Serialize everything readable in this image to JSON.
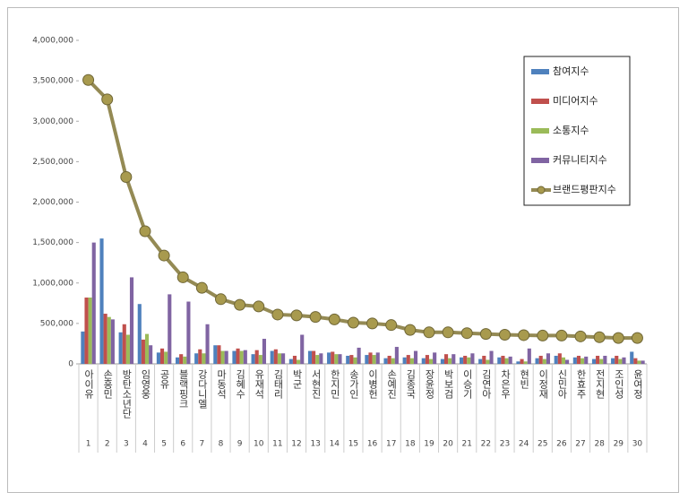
{
  "chart_data": {
    "type": "bar",
    "categories": [
      "아이유",
      "손흥민",
      "방탄소년단",
      "임영웅",
      "공유",
      "블랙핑크",
      "강다니엘",
      "마동석",
      "김혜수",
      "유재석",
      "김태리",
      "박군",
      "서현진",
      "한지민",
      "송가인",
      "이병헌",
      "손예진",
      "김종국",
      "장윤정",
      "박보검",
      "이승기",
      "김연아",
      "차은우",
      "현빈",
      "이정재",
      "신민아",
      "한효주",
      "전지현",
      "조인성",
      "윤여정"
    ],
    "ranks": [
      1,
      2,
      3,
      4,
      5,
      6,
      7,
      8,
      9,
      10,
      11,
      12,
      13,
      14,
      15,
      16,
      17,
      18,
      19,
      20,
      21,
      22,
      23,
      24,
      25,
      26,
      27,
      28,
      29,
      30
    ],
    "ylim": [
      0,
      4000000
    ],
    "yticks": [
      0,
      {
        "value": 500000,
        "label": "500,000"
      },
      {
        "value": 1000000,
        "label": "1,000,000"
      },
      {
        "value": 1500000,
        "label": "1,500,000"
      },
      {
        "value": 2000000,
        "label": "2,000,000"
      },
      {
        "value": 2500000,
        "label": "2,500,000"
      },
      {
        "value": 3000000,
        "label": "3,000,000"
      },
      {
        "value": 3500000,
        "label": "3,500,000"
      },
      {
        "value": 4000000,
        "label": "4,000,000"
      }
    ],
    "legend": "upper-right",
    "series": [
      {
        "name": "참여지수",
        "type": "bar",
        "color": "#4f81bd",
        "values": [
          400000,
          1550000,
          390000,
          740000,
          140000,
          80000,
          130000,
          230000,
          160000,
          120000,
          160000,
          60000,
          160000,
          140000,
          100000,
          110000,
          70000,
          80000,
          70000,
          60000,
          80000,
          60000,
          80000,
          30000,
          70000,
          100000,
          80000,
          60000,
          70000,
          150000
        ]
      },
      {
        "name": "미디어지수",
        "type": "bar",
        "color": "#c0504d",
        "values": [
          820000,
          620000,
          490000,
          300000,
          190000,
          120000,
          180000,
          230000,
          190000,
          170000,
          180000,
          100000,
          160000,
          150000,
          110000,
          140000,
          100000,
          110000,
          110000,
          120000,
          100000,
          100000,
          100000,
          60000,
          100000,
          130000,
          100000,
          100000,
          100000,
          70000
        ]
      },
      {
        "name": "소통지수",
        "type": "bar",
        "color": "#9bbb59",
        "values": [
          820000,
          580000,
          360000,
          370000,
          150000,
          90000,
          130000,
          160000,
          160000,
          110000,
          130000,
          50000,
          110000,
          120000,
          80000,
          110000,
          70000,
          70000,
          60000,
          70000,
          80000,
          50000,
          70000,
          30000,
          60000,
          80000,
          70000,
          60000,
          60000,
          40000
        ]
      },
      {
        "name": "커뮤니티지수",
        "type": "bar",
        "color": "#8064a2",
        "values": [
          1500000,
          550000,
          1070000,
          230000,
          860000,
          770000,
          490000,
          160000,
          170000,
          310000,
          130000,
          360000,
          130000,
          120000,
          200000,
          140000,
          210000,
          160000,
          140000,
          120000,
          130000,
          160000,
          90000,
          190000,
          130000,
          50000,
          90000,
          100000,
          80000,
          40000
        ]
      },
      {
        "name": "브랜드평판지수",
        "type": "line",
        "color": "#948a54",
        "values": [
          3510000,
          3270000,
          2310000,
          1640000,
          1340000,
          1070000,
          940000,
          800000,
          730000,
          710000,
          610000,
          600000,
          580000,
          550000,
          510000,
          500000,
          480000,
          420000,
          390000,
          390000,
          380000,
          370000,
          360000,
          355000,
          350000,
          350000,
          340000,
          330000,
          320000,
          320000
        ]
      }
    ]
  }
}
